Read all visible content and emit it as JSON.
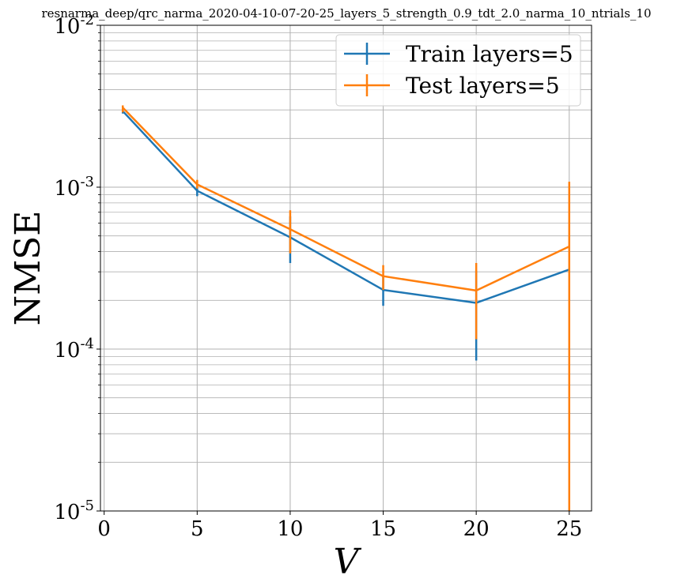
{
  "chart_data": {
    "type": "line",
    "title": "resnarma_deep/qrc_narma_2020-04-10-07-20-25_layers_5_strength_0.9_tdt_2.0_narma_10_ntrials_10",
    "xlabel": "V",
    "ylabel": "NMSE",
    "xlim": [
      -0.2,
      26.2
    ],
    "ylim": [
      1e-05,
      0.01
    ],
    "yscale": "log",
    "grid": true,
    "legend_position": "top-right",
    "x_ticks": [
      {
        "value": 0,
        "label": "0"
      },
      {
        "value": 5,
        "label": "5"
      },
      {
        "value": 10,
        "label": "10"
      },
      {
        "value": 15,
        "label": "15"
      },
      {
        "value": 20,
        "label": "20"
      },
      {
        "value": 25,
        "label": "25"
      }
    ],
    "y_ticks": [
      {
        "value": 0.01,
        "base": "10",
        "exp": "-2"
      },
      {
        "value": 0.001,
        "base": "10",
        "exp": "-3"
      },
      {
        "value": 0.0001,
        "base": "10",
        "exp": "-4"
      },
      {
        "value": 1e-05,
        "base": "10",
        "exp": "-5"
      }
    ],
    "x": [
      1,
      5,
      10,
      15,
      20,
      25
    ],
    "series": [
      {
        "name": "Train layers=5",
        "color": "#1f77b4",
        "values": [
          0.00295,
          0.00095,
          0.00049,
          0.000232,
          0.000193,
          0.00031
        ],
        "err_low": [
          0.00285,
          0.00088,
          0.00034,
          0.000185,
          8.5e-05,
          0.00031
        ],
        "err_high": [
          0.00305,
          0.00101,
          0.00066,
          0.000285,
          0.000305,
          0.00031
        ]
      },
      {
        "name": "Test layers=5",
        "color": "#ff7f0e",
        "values": [
          0.0031,
          0.00104,
          0.00055,
          0.000282,
          0.00023,
          0.00043
        ],
        "err_low": [
          0.0029,
          0.00098,
          0.00039,
          0.000232,
          0.000115,
          1e-05
        ],
        "err_high": [
          0.0032,
          0.00111,
          0.00072,
          0.00033,
          0.00034,
          0.00108
        ]
      }
    ]
  }
}
